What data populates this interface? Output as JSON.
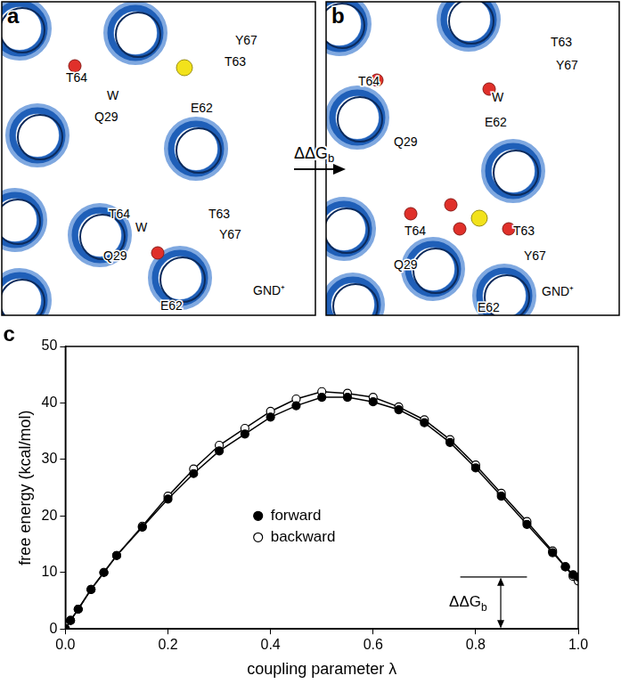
{
  "panels": [
    {
      "letter": "a",
      "labels": [
        "Y67",
        "T63",
        "T64",
        "W",
        "E62",
        "Q29",
        "T64",
        "T63",
        "W",
        "Q29",
        "Y67",
        "GND⁺",
        "E62"
      ]
    },
    {
      "letter": "b",
      "labels": [
        "T63",
        "Y67",
        "T64",
        "W",
        "E62",
        "Q29",
        "T64",
        "T63",
        "Y67",
        "Q29",
        "GND⁺",
        "E62"
      ]
    }
  ],
  "transition_label": {
    "text": "ΔΔG",
    "sub": "b"
  },
  "chart_data": {
    "letter": "c",
    "type": "line",
    "x_label": "coupling parameter λ",
    "y_label": "free energy (kcal/mol)",
    "xlim": [
      0,
      1
    ],
    "xticks": [
      {
        "value": 0,
        "label": "0.0"
      },
      {
        "value": 0.2,
        "label": "0.2"
      },
      {
        "value": 0.4,
        "label": "0.4"
      },
      {
        "value": 0.6,
        "label": "0.6"
      },
      {
        "value": 0.8,
        "label": "0.8"
      },
      {
        "value": 1,
        "label": "1.0"
      }
    ],
    "ylim": [
      0,
      50
    ],
    "yticks": [
      0,
      10,
      20,
      30,
      40,
      50
    ],
    "grid": false,
    "legend": "center",
    "x": [
      0,
      0.01,
      0.025,
      0.05,
      0.075,
      0.1,
      0.15,
      0.2,
      0.25,
      0.3,
      0.35,
      0.4,
      0.45,
      0.5,
      0.55,
      0.6,
      0.65,
      0.7,
      0.75,
      0.8,
      0.85,
      0.9,
      0.95,
      0.975,
      0.99,
      1
    ],
    "series": [
      {
        "name": "forward",
        "color": "#000000",
        "marker": "filled circle",
        "values": [
          0,
          1.5,
          3.5,
          7,
          10,
          13,
          18,
          23,
          27.5,
          31.5,
          34.5,
          37.5,
          39.5,
          41,
          41,
          40.2,
          38.8,
          36.5,
          33,
          28.5,
          23.5,
          18.5,
          13.5,
          11,
          9.6,
          9.2
        ]
      },
      {
        "name": "backward",
        "color": "#000000",
        "marker": "open circle",
        "values": [
          0,
          1.5,
          3.5,
          7,
          10,
          13,
          18.2,
          23.5,
          28.3,
          32.5,
          35.5,
          38.5,
          40.7,
          42,
          41.7,
          41,
          39.3,
          37,
          33.5,
          29,
          24,
          19,
          13.8,
          11,
          9.3,
          8.5
        ]
      }
    ],
    "annotation": {
      "text": "ΔΔG",
      "sub": "b",
      "x": [
        0.77,
        0.9
      ],
      "y": [
        0,
        9.2
      ]
    }
  }
}
